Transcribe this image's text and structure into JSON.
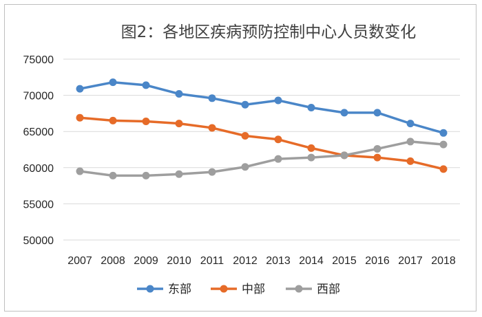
{
  "chart_data": {
    "type": "line",
    "title": "图2：各地区疾病预防控制中心人员数变化",
    "xlabel": "",
    "ylabel": "",
    "categories": [
      "2007",
      "2008",
      "2009",
      "2010",
      "2011",
      "2012",
      "2013",
      "2014",
      "2015",
      "2016",
      "2017",
      "2018"
    ],
    "y_ticks": [
      "75000",
      "70000",
      "65000",
      "60000",
      "55000",
      "50000"
    ],
    "ylim": [
      50000,
      75000
    ],
    "grid": true,
    "legend_position": "bottom",
    "series": [
      {
        "name": "东部",
        "color": "#4a86c8",
        "values": [
          70900,
          71800,
          71400,
          70200,
          69600,
          68700,
          69300,
          68300,
          67600,
          67600,
          66100,
          64800
        ]
      },
      {
        "name": "中部",
        "color": "#e66b28",
        "values": [
          66900,
          66500,
          66400,
          66100,
          65500,
          64400,
          63900,
          62700,
          61700,
          61400,
          60900,
          59800
        ]
      },
      {
        "name": "西部",
        "color": "#9e9e9e",
        "values": [
          59500,
          58900,
          58900,
          59100,
          59400,
          60100,
          61200,
          61400,
          61700,
          62600,
          63600,
          63200
        ]
      }
    ]
  }
}
